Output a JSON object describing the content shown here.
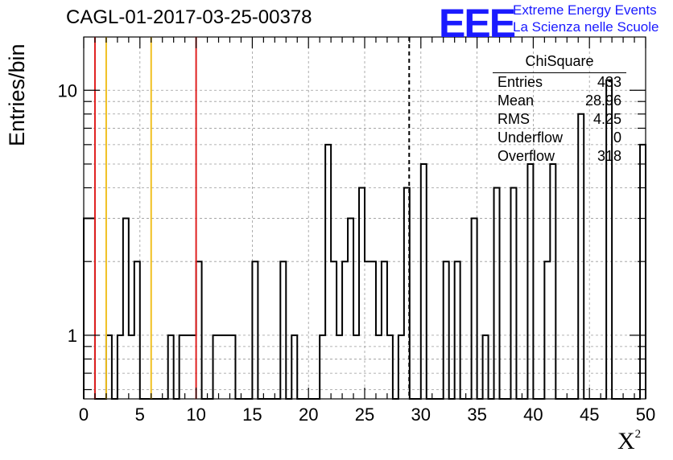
{
  "title": "CAGL-01-2017-03-25-00378",
  "logo": {
    "mark": "EEE",
    "line1": "Extreme Energy Events",
    "line2": "La Scienza nelle Scuole",
    "color": "#1a1aff"
  },
  "stats": {
    "title": "ChiSquare",
    "rows": [
      {
        "label": "Entries",
        "value": "433"
      },
      {
        "label": "Mean",
        "value": "28.96"
      },
      {
        "label": "RMS",
        "value": "4.25"
      },
      {
        "label": "Underflow",
        "value": "0"
      },
      {
        "label": "Overflow",
        "value": "318"
      }
    ]
  },
  "chart_data": {
    "type": "histogram",
    "title": "CAGL-01-2017-03-25-00378",
    "xlabel": "X²",
    "ylabel": "Entries/bin",
    "xlim": [
      0,
      50
    ],
    "ylim": [
      0.55,
      16.5
    ],
    "y_scale": "log",
    "grid": true,
    "x_ticks": [
      "0",
      "5",
      "10",
      "15",
      "20",
      "25",
      "30",
      "35",
      "40",
      "45",
      "50"
    ],
    "y_tick_labels": [
      {
        "value": 1,
        "label": "1"
      },
      {
        "value": 10,
        "label": "10"
      }
    ],
    "bin_width": 0.5,
    "bins": [
      [
        0.0,
        3
      ],
      [
        1.0,
        0
      ],
      [
        1.5,
        0
      ],
      [
        2.0,
        1
      ],
      [
        2.5,
        0
      ],
      [
        3.0,
        1
      ],
      [
        3.5,
        3
      ],
      [
        4.0,
        1
      ],
      [
        4.5,
        2
      ],
      [
        5.0,
        0
      ],
      [
        7.0,
        0
      ],
      [
        7.5,
        1
      ],
      [
        8.0,
        0
      ],
      [
        8.5,
        1
      ],
      [
        9.0,
        1
      ],
      [
        9.5,
        1
      ],
      [
        10.0,
        2
      ],
      [
        10.5,
        0
      ],
      [
        11.5,
        1
      ],
      [
        12.0,
        1
      ],
      [
        12.5,
        1
      ],
      [
        13.0,
        1
      ],
      [
        13.5,
        0
      ],
      [
        14.5,
        0
      ],
      [
        15.0,
        2
      ],
      [
        15.5,
        0
      ],
      [
        16.5,
        0
      ],
      [
        17.5,
        2
      ],
      [
        18.0,
        0
      ],
      [
        18.5,
        1
      ],
      [
        19.0,
        0
      ],
      [
        21.0,
        1
      ],
      [
        21.5,
        6
      ],
      [
        22.0,
        2
      ],
      [
        22.5,
        1
      ],
      [
        23.0,
        2
      ],
      [
        23.5,
        3
      ],
      [
        24.0,
        1
      ],
      [
        24.5,
        4
      ],
      [
        25.0,
        2
      ],
      [
        25.5,
        2
      ],
      [
        26.0,
        1
      ],
      [
        26.5,
        2
      ],
      [
        27.0,
        1
      ],
      [
        27.5,
        0
      ],
      [
        28.0,
        1
      ],
      [
        28.5,
        4
      ],
      [
        29.0,
        0
      ],
      [
        30.0,
        5
      ],
      [
        30.5,
        0
      ],
      [
        31.5,
        0
      ],
      [
        32.0,
        2
      ],
      [
        32.5,
        0
      ],
      [
        33.0,
        2
      ],
      [
        33.5,
        0
      ],
      [
        34.5,
        3
      ],
      [
        35.0,
        0
      ],
      [
        35.5,
        1
      ],
      [
        36.0,
        0
      ],
      [
        36.5,
        4
      ],
      [
        37.0,
        0
      ],
      [
        38.0,
        4
      ],
      [
        38.5,
        0
      ],
      [
        39.5,
        5
      ],
      [
        40.0,
        0
      ],
      [
        41.0,
        2
      ],
      [
        41.5,
        5
      ],
      [
        42.0,
        0
      ],
      [
        44.0,
        8
      ],
      [
        44.5,
        0
      ],
      [
        46.5,
        11
      ],
      [
        47.0,
        0
      ],
      [
        49.5,
        6
      ]
    ],
    "vertical_lines": [
      {
        "x": 1,
        "color": "#e02020",
        "style": "solid"
      },
      {
        "x": 2,
        "color": "#f0c020",
        "style": "solid"
      },
      {
        "x": 6,
        "color": "#f0c020",
        "style": "solid"
      },
      {
        "x": 10,
        "color": "#e02020",
        "style": "solid"
      },
      {
        "x": 28.96,
        "color": "#000000",
        "style": "dashed"
      }
    ]
  }
}
